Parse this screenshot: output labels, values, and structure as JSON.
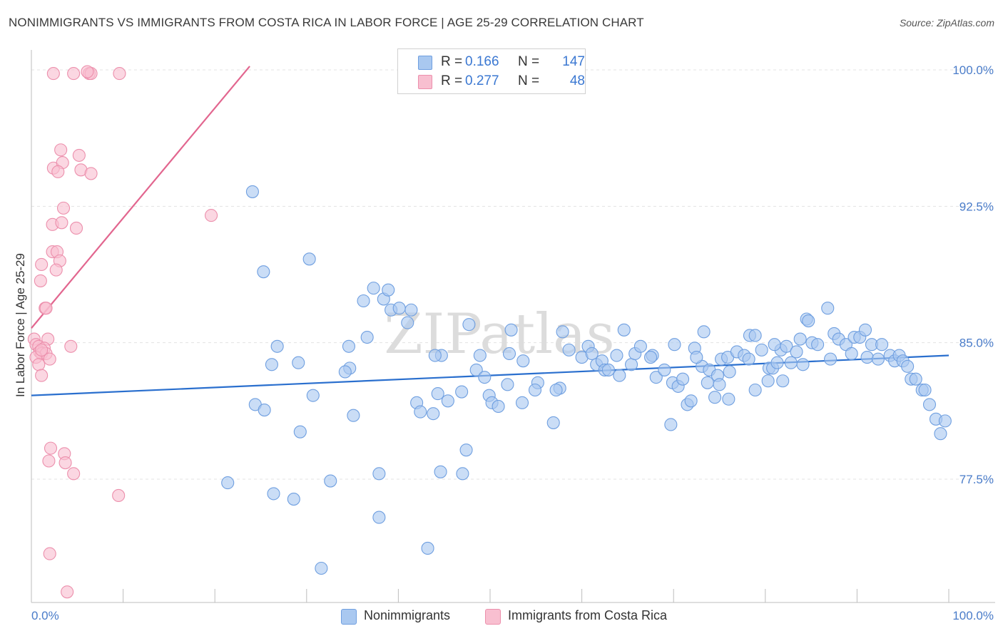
{
  "header": {
    "title": "NONIMMIGRANTS VS IMMIGRANTS FROM COSTA RICA IN LABOR FORCE | AGE 25-29 CORRELATION CHART",
    "source": "Source: ZipAtlas.com"
  },
  "watermark": "ZIPatlas",
  "colors": {
    "blue_fill": "#a9c8f0",
    "blue_stroke": "#6f9fe0",
    "blue_line": "#2a6fce",
    "pink_fill": "#f8bfd0",
    "pink_stroke": "#ec8fac",
    "pink_line": "#e2668f",
    "tick_text": "#4a7cc9"
  },
  "legend_top": {
    "rows": [
      {
        "r_label": "R =",
        "r_value": "0.166",
        "n_label": "N =",
        "n_value": "147",
        "swatch": "blue"
      },
      {
        "r_label": "R =",
        "r_value": "0.277",
        "n_label": "N =",
        "n_value": "48",
        "swatch": "pink"
      }
    ]
  },
  "legend_bottom": [
    {
      "label": "Nonimmigrants",
      "swatch": "blue"
    },
    {
      "label": "Immigrants from Costa Rica",
      "swatch": "pink"
    }
  ],
  "chart_data": {
    "type": "scatter",
    "ylabel": "In Labor Force | Age 25-29",
    "xlim": [
      0,
      100
    ],
    "ylim": [
      70.5,
      100.5
    ],
    "x_tick_labels": {
      "0": "0.0%",
      "100": "100.0%"
    },
    "y_ticks": [
      77.5,
      85.0,
      92.5,
      100.0
    ],
    "y_tick_labels": [
      "77.5%",
      "85.0%",
      "92.5%",
      "100.0%"
    ],
    "grid": true,
    "legend": "top-center",
    "series": [
      {
        "name": "Nonimmigrants",
        "color": "blue",
        "trend": {
          "x": [
            0,
            100
          ],
          "y": [
            82.1,
            84.3
          ]
        },
        "points": [
          [
            24.1,
            93.3
          ],
          [
            25.3,
            88.9
          ],
          [
            30.3,
            89.6
          ],
          [
            36.6,
            85.3
          ],
          [
            34.7,
            83.6
          ],
          [
            34.2,
            83.4
          ],
          [
            37.3,
            88.0
          ],
          [
            36.2,
            87.3
          ],
          [
            38.4,
            87.4
          ],
          [
            39.2,
            86.8
          ],
          [
            38.9,
            87.9
          ],
          [
            40.1,
            86.9
          ],
          [
            41.0,
            86.1
          ],
          [
            41.4,
            86.8
          ],
          [
            26.8,
            84.8
          ],
          [
            26.2,
            83.8
          ],
          [
            29.1,
            83.9
          ],
          [
            34.6,
            84.8
          ],
          [
            44.7,
            84.3
          ],
          [
            44.0,
            84.3
          ],
          [
            47.7,
            86.0
          ],
          [
            48.9,
            84.3
          ],
          [
            48.5,
            83.5
          ],
          [
            49.4,
            83.1
          ],
          [
            52.3,
            85.7
          ],
          [
            52.1,
            84.4
          ],
          [
            53.6,
            84.0
          ],
          [
            55.2,
            82.8
          ],
          [
            24.4,
            81.6
          ],
          [
            25.4,
            81.3
          ],
          [
            29.3,
            80.1
          ],
          [
            30.7,
            82.1
          ],
          [
            35.1,
            81.0
          ],
          [
            42.0,
            81.7
          ],
          [
            42.4,
            81.2
          ],
          [
            43.8,
            81.1
          ],
          [
            44.3,
            82.2
          ],
          [
            45.4,
            81.8
          ],
          [
            46.9,
            82.3
          ],
          [
            49.9,
            82.1
          ],
          [
            50.2,
            81.7
          ],
          [
            50.9,
            81.5
          ],
          [
            53.5,
            81.7
          ],
          [
            51.9,
            82.7
          ],
          [
            54.9,
            82.4
          ],
          [
            57.6,
            82.5
          ],
          [
            57.2,
            82.4
          ],
          [
            58.6,
            84.6
          ],
          [
            57.9,
            85.6
          ],
          [
            60.0,
            84.2
          ],
          [
            60.7,
            84.8
          ],
          [
            61.1,
            84.4
          ],
          [
            61.6,
            83.8
          ],
          [
            62.2,
            84.0
          ],
          [
            62.5,
            83.5
          ],
          [
            63.8,
            84.3
          ],
          [
            65.4,
            83.8
          ],
          [
            64.6,
            85.7
          ],
          [
            62.9,
            83.5
          ],
          [
            64.1,
            83.2
          ],
          [
            65.8,
            84.4
          ],
          [
            67.7,
            84.3
          ],
          [
            68.1,
            83.1
          ],
          [
            69.0,
            83.5
          ],
          [
            69.9,
            82.8
          ],
          [
            70.5,
            82.6
          ],
          [
            71.0,
            83.0
          ],
          [
            71.5,
            81.6
          ],
          [
            71.9,
            81.8
          ],
          [
            72.3,
            84.7
          ],
          [
            73.1,
            83.7
          ],
          [
            73.7,
            82.8
          ],
          [
            74.5,
            82.0
          ],
          [
            73.9,
            83.5
          ],
          [
            74.8,
            83.2
          ],
          [
            75.2,
            84.1
          ],
          [
            75.9,
            84.2
          ],
          [
            76.1,
            83.4
          ],
          [
            76.9,
            84.5
          ],
          [
            77.7,
            84.3
          ],
          [
            78.2,
            84.1
          ],
          [
            78.3,
            85.4
          ],
          [
            78.9,
            85.4
          ],
          [
            79.6,
            84.6
          ],
          [
            80.4,
            83.6
          ],
          [
            80.8,
            83.6
          ],
          [
            81.3,
            83.9
          ],
          [
            81.7,
            84.6
          ],
          [
            82.3,
            84.8
          ],
          [
            83.4,
            84.5
          ],
          [
            84.1,
            83.8
          ],
          [
            83.8,
            85.2
          ],
          [
            84.5,
            86.3
          ],
          [
            84.7,
            86.2
          ],
          [
            85.1,
            85.0
          ],
          [
            85.7,
            84.9
          ],
          [
            86.8,
            86.9
          ],
          [
            87.1,
            84.1
          ],
          [
            87.5,
            85.5
          ],
          [
            88.0,
            85.2
          ],
          [
            88.8,
            84.9
          ],
          [
            89.4,
            84.4
          ],
          [
            89.7,
            85.3
          ],
          [
            90.3,
            85.3
          ],
          [
            90.9,
            85.7
          ],
          [
            91.1,
            84.2
          ],
          [
            91.6,
            84.9
          ],
          [
            92.3,
            84.1
          ],
          [
            92.7,
            84.9
          ],
          [
            93.6,
            84.3
          ],
          [
            94.1,
            84.0
          ],
          [
            94.6,
            84.3
          ],
          [
            95.0,
            84.0
          ],
          [
            95.5,
            83.7
          ],
          [
            95.9,
            83.0
          ],
          [
            96.4,
            83.0
          ],
          [
            97.1,
            82.4
          ],
          [
            97.4,
            82.4
          ],
          [
            97.9,
            81.6
          ],
          [
            98.6,
            80.8
          ],
          [
            99.1,
            80.0
          ],
          [
            99.6,
            80.7
          ],
          [
            28.6,
            76.4
          ],
          [
            26.4,
            76.7
          ],
          [
            21.4,
            77.3
          ],
          [
            32.6,
            77.4
          ],
          [
            37.9,
            77.8
          ],
          [
            44.6,
            77.9
          ],
          [
            47.0,
            77.8
          ],
          [
            47.4,
            79.1
          ],
          [
            37.9,
            75.4
          ],
          [
            43.2,
            73.7
          ],
          [
            31.6,
            72.6
          ],
          [
            56.9,
            80.6
          ],
          [
            69.7,
            80.5
          ],
          [
            80.3,
            82.9
          ],
          [
            78.9,
            82.4
          ],
          [
            76.0,
            81.9
          ],
          [
            75.0,
            82.7
          ],
          [
            67.5,
            84.2
          ],
          [
            66.4,
            84.8
          ],
          [
            70.1,
            84.9
          ],
          [
            72.5,
            84.2
          ],
          [
            73.3,
            85.6
          ],
          [
            81.9,
            82.9
          ],
          [
            81.0,
            84.9
          ],
          [
            82.8,
            83.9
          ]
        ]
      },
      {
        "name": "Immigrants from Costa Rica",
        "color": "pink",
        "trend": {
          "x": [
            0,
            23.8
          ],
          "y": [
            85.8,
            100.2
          ]
        },
        "points": [
          [
            2.4,
            99.8
          ],
          [
            4.6,
            99.8
          ],
          [
            6.3,
            99.8
          ],
          [
            6.5,
            99.8
          ],
          [
            9.6,
            99.8
          ],
          [
            6.1,
            99.9
          ],
          [
            3.2,
            95.6
          ],
          [
            5.2,
            95.3
          ],
          [
            2.4,
            94.6
          ],
          [
            3.4,
            94.9
          ],
          [
            2.9,
            94.4
          ],
          [
            5.4,
            94.5
          ],
          [
            6.5,
            94.3
          ],
          [
            3.5,
            92.4
          ],
          [
            2.3,
            91.5
          ],
          [
            3.3,
            91.6
          ],
          [
            4.9,
            91.3
          ],
          [
            19.6,
            92.0
          ],
          [
            2.3,
            90.0
          ],
          [
            2.8,
            90.0
          ],
          [
            3.1,
            89.5
          ],
          [
            1.1,
            89.3
          ],
          [
            2.7,
            89.0
          ],
          [
            1.0,
            88.4
          ],
          [
            1.5,
            86.9
          ],
          [
            1.6,
            86.9
          ],
          [
            0.3,
            85.2
          ],
          [
            1.8,
            85.2
          ],
          [
            0.5,
            84.9
          ],
          [
            0.8,
            84.8
          ],
          [
            1.4,
            84.7
          ],
          [
            0.9,
            84.5
          ],
          [
            1.1,
            84.4
          ],
          [
            1.6,
            84.4
          ],
          [
            0.5,
            84.2
          ],
          [
            2.0,
            84.1
          ],
          [
            4.3,
            84.8
          ],
          [
            0.8,
            83.8
          ],
          [
            1.1,
            83.2
          ],
          [
            2.1,
            79.2
          ],
          [
            1.9,
            78.5
          ],
          [
            3.6,
            78.9
          ],
          [
            3.7,
            78.4
          ],
          [
            4.6,
            77.8
          ],
          [
            9.5,
            76.6
          ],
          [
            2.0,
            73.4
          ],
          [
            3.9,
            71.3
          ],
          [
            1.1,
            84.6
          ]
        ]
      }
    ]
  }
}
